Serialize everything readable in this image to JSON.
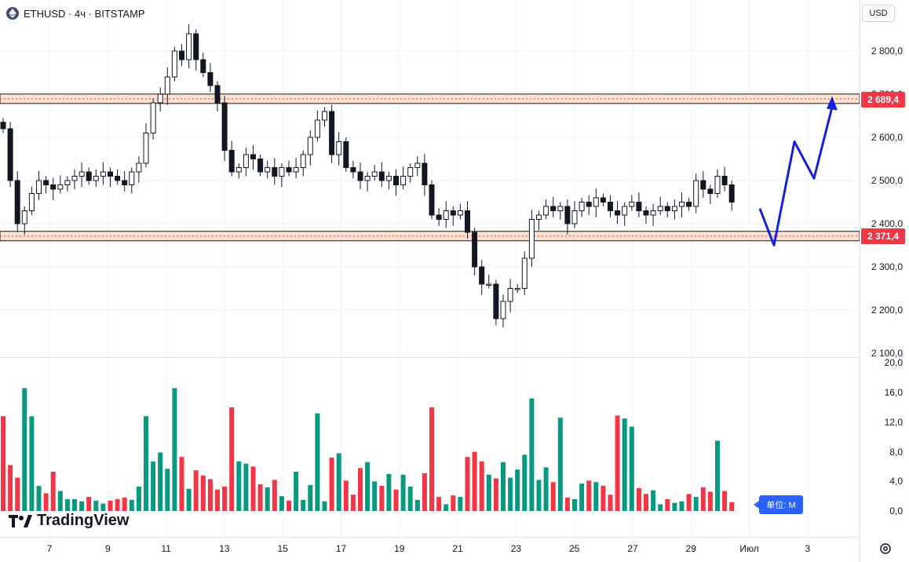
{
  "header": {
    "symbol_label": "ETHUSD · 4ч · BITSTAMP"
  },
  "currency_button": "USD",
  "price_axis_labels": [
    "2 800,0",
    "2 700,0",
    "2 600,0",
    "2 500,0",
    "2 400,0",
    "2 300,0",
    "2 200,0",
    "2 100,0"
  ],
  "volume_axis_labels": [
    "20,0",
    "16,0",
    "12,0",
    "8,0",
    "4,0",
    "0,0"
  ],
  "x_axis_labels": [
    "7",
    "9",
    "11",
    "13",
    "15",
    "17",
    "19",
    "21",
    "23",
    "25",
    "27",
    "29",
    "Июл",
    "3"
  ],
  "levels": [
    {
      "price_label": "2 689,4",
      "value": 2689.4
    },
    {
      "price_label": "2 371,4",
      "value": 2371.4
    }
  ],
  "volume_unit_label": "单位: M",
  "brand": "TradingView",
  "colors": {
    "up": "#089981",
    "down": "#f23645",
    "candle": "#131722",
    "projection": "#1322d8",
    "level_band": "#fde3cf"
  },
  "icons": [
    "ethereum-icon",
    "tradingview-logo-icon",
    "settings-icon"
  ],
  "chart_data": [
    {
      "type": "candlestick",
      "y_range": [
        2100,
        2800
      ],
      "x_tick_labels": [
        "7",
        "9",
        "11",
        "13",
        "15",
        "17",
        "19",
        "21",
        "23",
        "25",
        "27",
        "29",
        "Июл",
        "3"
      ],
      "closes": [
        2620,
        2500,
        2400,
        2430,
        2470,
        2500,
        2490,
        2480,
        2490,
        2500,
        2510,
        2520,
        2500,
        2510,
        2520,
        2510,
        2500,
        2490,
        2520,
        2540,
        2610,
        2680,
        2700,
        2740,
        2800,
        2780,
        2840,
        2780,
        2750,
        2720,
        2680,
        2570,
        2520,
        2530,
        2560,
        2550,
        2520,
        2530,
        2510,
        2530,
        2520,
        2530,
        2560,
        2600,
        2640,
        2660,
        2560,
        2590,
        2530,
        2520,
        2500,
        2510,
        2520,
        2500,
        2510,
        2490,
        2510,
        2530,
        2540,
        2490,
        2420,
        2410,
        2430,
        2420,
        2430,
        2380,
        2300,
        2260,
        2260,
        2180,
        2220,
        2250,
        2250,
        2320,
        2410,
        2420,
        2440,
        2430,
        2440,
        2400,
        2430,
        2450,
        2440,
        2460,
        2450,
        2430,
        2420,
        2440,
        2450,
        2430,
        2420,
        2430,
        2440,
        2430,
        2440,
        2450,
        2440,
        2500,
        2480,
        2470,
        2510,
        2490,
        2450
      ],
      "projection_path": [
        2435,
        2350,
        2590,
        2505,
        2670
      ]
    },
    {
      "type": "bar",
      "title": "",
      "y_range": [
        0,
        20
      ],
      "values": [
        12.8,
        6.2,
        4.5,
        16.6,
        12.8,
        3.4,
        2.4,
        5.3,
        2.7,
        1.6,
        1.6,
        1.3,
        1.9,
        1.4,
        1.0,
        1.4,
        1.6,
        1.8,
        1.5,
        3.3,
        12.8,
        6.7,
        7.9,
        5.7,
        16.6,
        7.3,
        3.0,
        5.5,
        4.8,
        4.3,
        2.9,
        3.3,
        14.0,
        6.7,
        6.4,
        6.0,
        3.6,
        3.2,
        4.2,
        2.0,
        1.4,
        5.3,
        1.5,
        3.5,
        13.2,
        1.3,
        7.2,
        7.8,
        4.1,
        2.2,
        5.8,
        6.6,
        4.0,
        3.4,
        5.0,
        2.9,
        4.9,
        3.3,
        1.5,
        5.1,
        14.0,
        1.9,
        0.9,
        2.1,
        1.9,
        7.3,
        8.0,
        6.7,
        4.9,
        4.4,
        6.6,
        4.5,
        5.6,
        7.6,
        15.2,
        4.2,
        5.9,
        3.9,
        12.6,
        1.8,
        1.6,
        3.7,
        4.1,
        3.9,
        3.4,
        2.2,
        12.9,
        12.5,
        11.4,
        3.1,
        2.3,
        2.8,
        0.9,
        1.6,
        1.1,
        1.3,
        2.3,
        1.9,
        3.2,
        2.6,
        9.5,
        2.7,
        1.2
      ]
    }
  ]
}
